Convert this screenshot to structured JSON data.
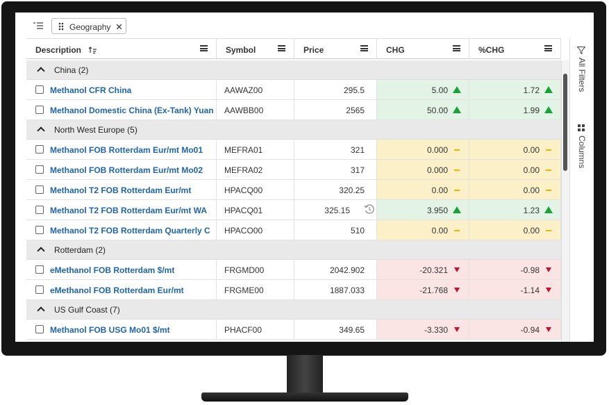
{
  "toolbar": {
    "chip": "Geography"
  },
  "columns": [
    "Description",
    "Symbol",
    "Price",
    "CHG",
    "%CHG"
  ],
  "side_panel": {
    "filters": "All Filters",
    "columns": "Columns"
  },
  "groups": [
    {
      "label": "China (2)",
      "rows": [
        [
          "Methanol CFR China",
          "AAWAZ00",
          "295.5",
          "5.00",
          "1.72"
        ],
        [
          "Methanol Domestic China (Ex-Tank) Yuan",
          "AAWBB00",
          "2565",
          "50.00",
          "1.99"
        ]
      ]
    },
    {
      "label": "North West Europe (5)",
      "rows": [
        [
          "Methanol FOB Rotterdam Eur/mt Mo01",
          "MEFRA01",
          "321",
          "0.000",
          "0.00"
        ],
        [
          "Methanol FOB Rotterdam Eur/mt Mo02",
          "MEFRA02",
          "317",
          "0.000",
          "0.00"
        ],
        [
          "Methanol T2 FOB Rotterdam Eur/mt",
          "HPACQ00",
          "320.25",
          "0.00",
          "0.00"
        ],
        [
          "Methanol T2 FOB Rotterdam Eur/mt WA",
          "HPACQ01",
          "325.15",
          "3.950",
          "1.23"
        ],
        [
          "Methanol T2 FOB Rotterdam Quarterly C",
          "HPACO00",
          "510",
          "0.00",
          "0.00"
        ]
      ]
    },
    {
      "label": "Rotterdam (2)",
      "rows": [
        [
          "eMethanol FOB Rotterdam $/mt",
          "FRGMD00",
          "2042.902",
          "-20.321",
          "-0.98"
        ],
        [
          "eMethanol FOB Rotterdam Eur/mt",
          "FRGME00",
          "1887.033",
          "-21.768",
          "-1.14"
        ]
      ]
    },
    {
      "label": "US Gulf Coast (7)",
      "rows": [
        [
          "Methanol FOB USG Mo01 $/mt",
          "PHACF00",
          "349.65",
          "-3.330",
          "-0.94"
        ]
      ]
    }
  ]
}
